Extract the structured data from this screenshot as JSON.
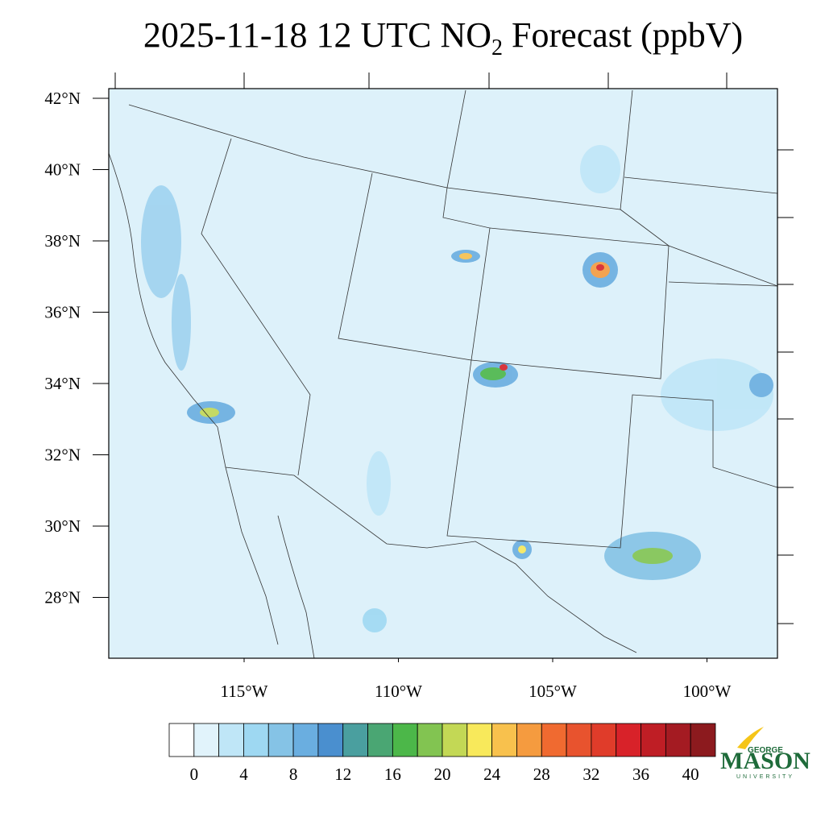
{
  "map": {
    "title": {
      "prefix": "2025-11-18 12 UTC NO",
      "subscript": "2",
      "suffix": " Forecast (ppbV)"
    },
    "lat_ticks": [
      {
        "value": 42,
        "label": "42°N"
      },
      {
        "value": 40,
        "label": "40°N"
      },
      {
        "value": 38,
        "label": "38°N"
      },
      {
        "value": 36,
        "label": "36°N"
      },
      {
        "value": 34,
        "label": "34°N"
      },
      {
        "value": 32,
        "label": "32°N"
      },
      {
        "value": 30,
        "label": "30°N"
      },
      {
        "value": 28,
        "label": "28°N"
      }
    ],
    "lon_ticks": [
      {
        "value": -115,
        "label": "115°W"
      },
      {
        "value": -110,
        "label": "110°W"
      },
      {
        "value": -105,
        "label": "105°W"
      },
      {
        "value": -100,
        "label": "100°W"
      }
    ],
    "colorbar": {
      "colors": [
        "#ffffff",
        "#e1f3fb",
        "#bfe6f7",
        "#9ed8f2",
        "#85c3e6",
        "#6aaee0",
        "#4a8fcf",
        "#4a9f9f",
        "#4aa673",
        "#4cb749",
        "#82c451",
        "#c3d855",
        "#f8e95b",
        "#f8c14d",
        "#f59b3f",
        "#f06a30",
        "#e8532e",
        "#e03c2a",
        "#d82229",
        "#bf1e25",
        "#a41b22",
        "#8c1a1e"
      ],
      "ticks": [
        0,
        4,
        8,
        12,
        16,
        20,
        24,
        28,
        32,
        36,
        40
      ]
    },
    "logo": {
      "top": "GEORGE",
      "main": "MASON",
      "bottom": "UNIVERSITY"
    }
  }
}
